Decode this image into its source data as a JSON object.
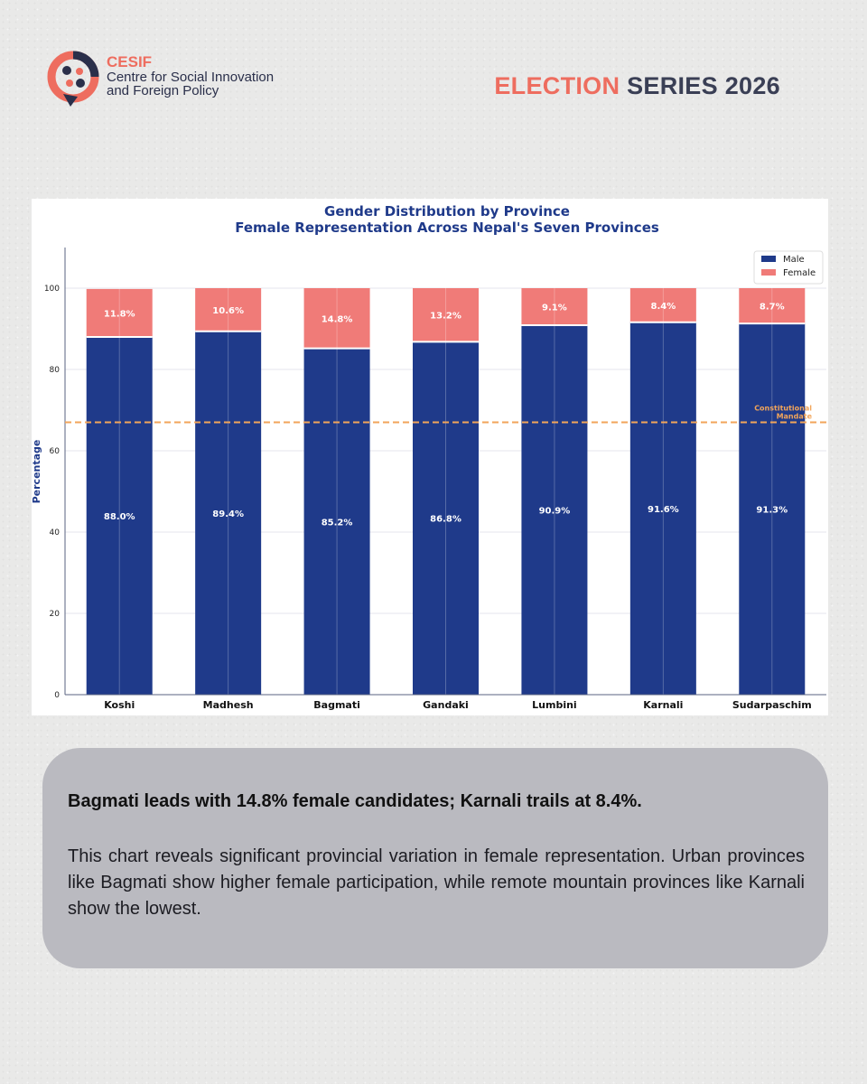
{
  "header": {
    "brand_name": "CESIF",
    "brand_line1": "Centre for Social Innovation",
    "brand_line2": "and Foreign Policy",
    "series_highlight": "ELECTION",
    "series_rest": "SERIES 2026",
    "accent_color": "#ee6d5f",
    "dark_color": "#2a2f4a"
  },
  "chart_data": {
    "type": "bar",
    "stacked": true,
    "title": "Gender Distribution by Province",
    "subtitle": "Female Representation Across Nepal's Seven Provinces",
    "xlabel": "",
    "ylabel": "Percentage",
    "ylim": [
      0,
      110
    ],
    "yticks": [
      0,
      20,
      40,
      60,
      80,
      100
    ],
    "grid": true,
    "legend": "top-right",
    "categories": [
      "Koshi",
      "Madhesh",
      "Bagmati",
      "Gandaki",
      "Lumbini",
      "Karnali",
      "Sudarpaschim"
    ],
    "series": [
      {
        "name": "Male",
        "color": "#1f3a8a",
        "values": [
          88.0,
          89.4,
          85.2,
          86.8,
          90.9,
          91.6,
          91.3
        ],
        "labels": [
          "88.0%",
          "89.4%",
          "85.2%",
          "86.8%",
          "90.9%",
          "91.6%",
          "91.3%"
        ]
      },
      {
        "name": "Female",
        "color": "#f07b78",
        "values": [
          11.8,
          10.6,
          14.8,
          13.2,
          9.1,
          8.4,
          8.7
        ],
        "labels": [
          "11.8%",
          "10.6%",
          "14.8%",
          "13.2%",
          "9.1%",
          "8.4%",
          "8.7%"
        ]
      }
    ],
    "reference_line": {
      "value": 67,
      "label_line1": "Constitutional",
      "label_line2": "Mandate",
      "color": "#f2a55a"
    }
  },
  "card": {
    "headline": "Bagmati leads with 14.8% female candidates; Karnali trails at 8.4%.",
    "body": "This chart reveals significant provincial variation in female representation. Urban provinces like Bagmati show higher female participation, while remote mountain provinces like Karnali show the lowest."
  }
}
